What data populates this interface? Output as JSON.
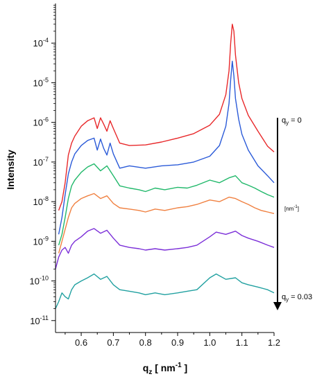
{
  "chart_data": {
    "type": "line",
    "xlabel": {
      "base": "q",
      "sub": "z",
      "rest": " [ nm",
      "sup": "-1",
      "tail": " ]"
    },
    "ylabel": "Intensity",
    "yscale": "log",
    "xlim": [
      0.52,
      1.2
    ],
    "ylim": [
      5e-12,
      0.001
    ],
    "grid": false,
    "x_ticks": [
      "0.6",
      "0.7",
      "0.8",
      "0.9",
      "1.0",
      "1.1",
      "1.2"
    ],
    "y_ticks": [
      {
        "base": "10",
        "exp": "-11"
      },
      {
        "base": "10",
        "exp": "-10"
      },
      {
        "base": "10",
        "exp": "-9"
      },
      {
        "base": "10",
        "exp": "-8"
      },
      {
        "base": "10",
        "exp": "-7"
      },
      {
        "base": "10",
        "exp": "-6"
      },
      {
        "base": "10",
        "exp": "-5"
      },
      {
        "base": "10",
        "exp": "-4"
      }
    ],
    "series": [
      {
        "color": "#e8282a",
        "x": [
          0.53,
          0.54,
          0.55,
          0.56,
          0.57,
          0.58,
          0.6,
          0.62,
          0.64,
          0.65,
          0.66,
          0.67,
          0.68,
          0.69,
          0.7,
          0.72,
          0.75,
          0.8,
          0.85,
          0.9,
          0.95,
          1.0,
          1.03,
          1.05,
          1.06,
          1.065,
          1.07,
          1.075,
          1.08,
          1.09,
          1.1,
          1.12,
          1.15,
          1.18,
          1.2
        ],
        "y": [
          6e-09,
          1e-08,
          3e-08,
          1.5e-07,
          3e-07,
          4.5e-07,
          8e-07,
          1.1e-06,
          1.3e-06,
          7e-07,
          1.3e-06,
          9e-07,
          6e-07,
          1.1e-06,
          7e-07,
          3e-07,
          2.6e-07,
          2.7e-07,
          3.2e-07,
          4e-07,
          5.2e-07,
          8.5e-07,
          1.6e-06,
          5e-06,
          2e-05,
          0.0001,
          0.0003,
          0.0002,
          5e-05,
          1e-05,
          4e-06,
          1.5e-06,
          6e-07,
          2.5e-07,
          1.8e-07
        ]
      },
      {
        "color": "#2a5ad8",
        "x": [
          0.53,
          0.54,
          0.55,
          0.56,
          0.57,
          0.58,
          0.6,
          0.62,
          0.64,
          0.65,
          0.66,
          0.67,
          0.68,
          0.69,
          0.7,
          0.72,
          0.75,
          0.8,
          0.85,
          0.9,
          0.95,
          1.0,
          1.03,
          1.05,
          1.06,
          1.065,
          1.07,
          1.075,
          1.08,
          1.09,
          1.1,
          1.12,
          1.15,
          1.18,
          1.2
        ],
        "y": [
          1.5e-09,
          4e-09,
          1.5e-08,
          5e-08,
          1e-07,
          1.6e-07,
          2.6e-07,
          3.5e-07,
          4e-07,
          2e-07,
          3.8e-07,
          2.2e-07,
          1.5e-07,
          3e-07,
          1.6e-07,
          7e-08,
          8e-08,
          7e-08,
          8e-08,
          8.5e-08,
          1e-07,
          1.4e-07,
          2.6e-07,
          8e-07,
          3e-06,
          1.2e-05,
          3.5e-05,
          1.5e-05,
          4e-06,
          1.2e-06,
          5e-07,
          2e-07,
          8e-08,
          4.5e-08,
          3e-08
        ]
      },
      {
        "color": "#20b86a",
        "x": [
          0.53,
          0.54,
          0.55,
          0.56,
          0.57,
          0.58,
          0.6,
          0.62,
          0.64,
          0.66,
          0.68,
          0.7,
          0.72,
          0.75,
          0.78,
          0.8,
          0.83,
          0.86,
          0.9,
          0.93,
          0.96,
          1.0,
          1.03,
          1.06,
          1.08,
          1.1,
          1.12,
          1.14,
          1.16,
          1.18,
          1.2
        ],
        "y": [
          8e-10,
          1.5e-09,
          4e-09,
          1.2e-08,
          2.5e-08,
          3.5e-08,
          5.5e-08,
          7.5e-08,
          9e-08,
          6e-08,
          8e-08,
          4.5e-08,
          2.5e-08,
          2.2e-08,
          2e-08,
          1.8e-08,
          2.2e-08,
          2e-08,
          2.3e-08,
          2.2e-08,
          2.6e-08,
          3.5e-08,
          3e-08,
          4e-08,
          4.5e-08,
          3e-08,
          2.6e-08,
          2.2e-08,
          1.8e-08,
          1.5e-08,
          1.3e-08
        ]
      },
      {
        "color": "#f08040",
        "x": [
          0.53,
          0.54,
          0.55,
          0.56,
          0.57,
          0.58,
          0.6,
          0.62,
          0.64,
          0.66,
          0.68,
          0.7,
          0.72,
          0.75,
          0.78,
          0.8,
          0.83,
          0.86,
          0.9,
          0.93,
          0.96,
          1.0,
          1.03,
          1.06,
          1.08,
          1.1,
          1.12,
          1.14,
          1.16,
          1.18,
          1.2
        ],
        "y": [
          5e-10,
          1e-09,
          2e-09,
          4e-09,
          7e-09,
          9e-09,
          1.2e-08,
          1.4e-08,
          1.6e-08,
          1.2e-08,
          1.4e-08,
          9e-09,
          7e-09,
          6.5e-09,
          6e-09,
          5.5e-09,
          6.5e-09,
          6e-09,
          7e-09,
          7.5e-09,
          8.5e-09,
          1.1e-08,
          1e-08,
          1.3e-08,
          1.2e-08,
          1e-08,
          8.5e-09,
          7e-09,
          6e-09,
          5.5e-09,
          5e-09
        ]
      },
      {
        "color": "#7b2ed8",
        "x": [
          0.52,
          0.53,
          0.54,
          0.55,
          0.56,
          0.57,
          0.58,
          0.6,
          0.62,
          0.64,
          0.66,
          0.68,
          0.7,
          0.72,
          0.75,
          0.78,
          0.8,
          0.83,
          0.86,
          0.9,
          0.93,
          0.96,
          1.0,
          1.02,
          1.05,
          1.08,
          1.1,
          1.12,
          1.15,
          1.18,
          1.2
        ],
        "y": [
          2e-10,
          4e-10,
          6e-10,
          7e-10,
          5e-10,
          8e-10,
          1e-09,
          1.3e-09,
          1.8e-09,
          2.1e-09,
          1.6e-09,
          1.9e-09,
          1.2e-09,
          8e-10,
          7e-10,
          6.5e-10,
          6e-10,
          6.5e-10,
          6e-10,
          6.5e-10,
          7e-10,
          8e-10,
          1.3e-09,
          1.7e-09,
          1.5e-09,
          1.8e-09,
          1.4e-09,
          1.2e-09,
          1e-09,
          8e-10,
          7e-10
        ]
      },
      {
        "color": "#20a0a0",
        "x": [
          0.52,
          0.53,
          0.54,
          0.55,
          0.56,
          0.57,
          0.58,
          0.6,
          0.62,
          0.64,
          0.66,
          0.68,
          0.7,
          0.72,
          0.75,
          0.78,
          0.8,
          0.83,
          0.86,
          0.9,
          0.93,
          0.96,
          1.0,
          1.02,
          1.05,
          1.08,
          1.1,
          1.12,
          1.15,
          1.18,
          1.2
        ],
        "y": [
          2e-11,
          3e-11,
          5e-11,
          4e-11,
          3.5e-11,
          6e-11,
          8e-11,
          1e-10,
          1.2e-10,
          1.5e-10,
          1.1e-10,
          1.3e-10,
          8e-11,
          6e-11,
          5.5e-11,
          5e-11,
          4.5e-11,
          5e-11,
          4.5e-11,
          5e-11,
          5.5e-11,
          6e-11,
          1.2e-10,
          1.5e-10,
          1.1e-10,
          1.2e-10,
          9e-11,
          8e-11,
          7e-11,
          6e-11,
          5e-11
        ]
      }
    ],
    "annotations": {
      "top": {
        "base": "q",
        "sub": "y",
        "rest": " = 0"
      },
      "unit": "[nm",
      "unit_sup": "-1",
      "unit_tail": "]",
      "bottom": {
        "base": "q",
        "sub": "y",
        "rest": " = 0.03"
      }
    }
  }
}
